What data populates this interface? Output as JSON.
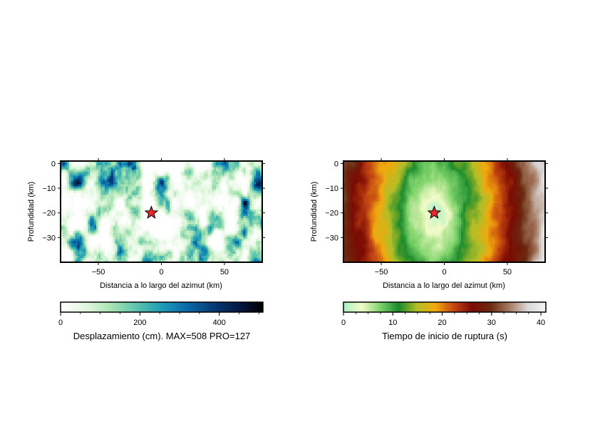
{
  "chart_data": [
    {
      "type": "heatmap",
      "field": "slip",
      "xlabel": "Distancia a lo largo del azimut (km)",
      "ylabel": "Profundidad (km)",
      "xlim": [
        -80,
        80
      ],
      "ylim": [
        -40,
        1
      ],
      "xticks": [
        -50,
        0,
        50
      ],
      "xtick_labels": [
        "−50",
        "0",
        "50"
      ],
      "yticks": [
        0,
        -10,
        -20,
        -30
      ],
      "ytick_labels": [
        "0",
        "−10",
        "−20",
        "−30"
      ],
      "hypocenter": {
        "x": -8,
        "y": -20,
        "marker": "star",
        "color": "#e8262c"
      },
      "colorbar": {
        "label": "Desplazamiento (cm). MAX=508 PRO=127",
        "range": [
          0,
          510
        ],
        "ticks": [
          0,
          200,
          400
        ],
        "tick_labels": [
          "0",
          "200",
          "400"
        ],
        "colors": [
          "#ffffff",
          "#e2f7df",
          "#a9e3b2",
          "#5cc4ad",
          "#1f9bb7",
          "#0a6aa8",
          "#063c78",
          "#041a45",
          "#000000"
        ]
      },
      "description_values": {
        "max": 508,
        "mean": 127,
        "unit": "cm"
      }
    },
    {
      "type": "heatmap",
      "field": "rupture_time",
      "xlabel": "Distancia a lo largo del azimut (km)",
      "ylabel": "Profundidad (km)",
      "xlim": [
        -80,
        80
      ],
      "ylim": [
        -40,
        1
      ],
      "xticks": [
        -50,
        0,
        50
      ],
      "xtick_labels": [
        "−50",
        "0",
        "50"
      ],
      "yticks": [
        0,
        -10,
        -20,
        -30
      ],
      "ytick_labels": [
        "0",
        "−10",
        "−20",
        "−30"
      ],
      "hypocenter": {
        "x": -8,
        "y": -20,
        "marker": "star",
        "color": "#e8262c"
      },
      "colorbar": {
        "label": "Tiempo de inicio de ruptura (s)",
        "range": [
          0,
          41
        ],
        "ticks": [
          0,
          10,
          20,
          30,
          40
        ],
        "tick_labels": [
          "0",
          "10",
          "20",
          "30",
          "40"
        ],
        "colors": [
          "#a8f0c4",
          "#f4fbc8",
          "#7ed36a",
          "#1a8a2c",
          "#b3be28",
          "#f2a90d",
          "#c24512",
          "#7a0b03",
          "#6b2a10",
          "#a57a60",
          "#d9d6d6",
          "#f4f4f4"
        ]
      }
    }
  ]
}
